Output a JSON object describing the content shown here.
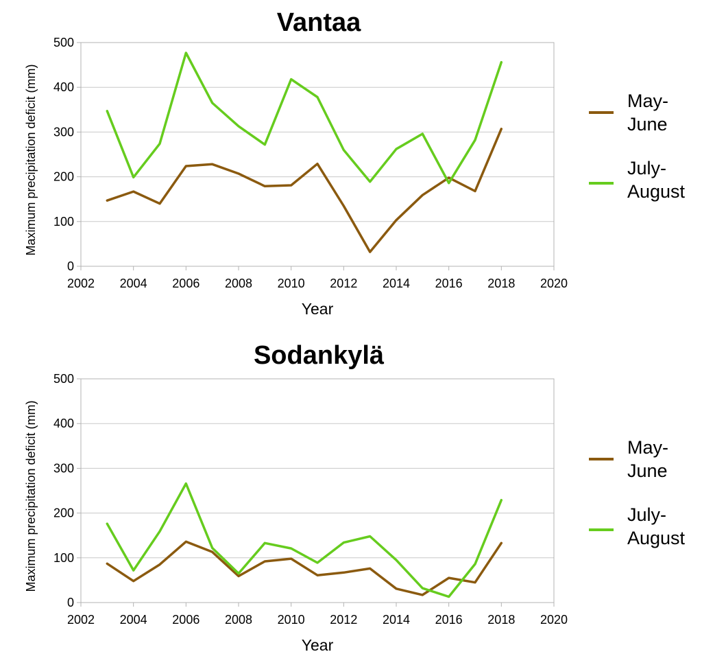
{
  "chart_data": [
    {
      "type": "line",
      "title": "Vantaa",
      "xlabel": "Year",
      "ylabel": "Maximum precipitation deficit (mm)",
      "xlim": [
        2002,
        2020
      ],
      "ylim": [
        0,
        500
      ],
      "xticks": [
        2002,
        2004,
        2006,
        2008,
        2010,
        2012,
        2014,
        2016,
        2018,
        2020
      ],
      "yticks": [
        0,
        100,
        200,
        300,
        400,
        500
      ],
      "grid": true,
      "legend_position": "right",
      "x": [
        2003,
        2004,
        2005,
        2006,
        2007,
        2008,
        2009,
        2010,
        2011,
        2012,
        2013,
        2014,
        2015,
        2016,
        2017,
        2018
      ],
      "series": [
        {
          "name": "May-June",
          "color": "#8B5A0F",
          "values": [
            147,
            167,
            140,
            224,
            228,
            207,
            179,
            181,
            229,
            135,
            32,
            103,
            159,
            198,
            168,
            307
          ]
        },
        {
          "name": "July-August",
          "color": "#66CC1E",
          "values": [
            347,
            199,
            274,
            477,
            365,
            313,
            272,
            418,
            378,
            260,
            189,
            262,
            296,
            186,
            282,
            456
          ]
        }
      ]
    },
    {
      "type": "line",
      "title": "Sodankylä",
      "xlabel": "Year",
      "ylabel": "Maximum precipitation deficit (mm)",
      "xlim": [
        2002,
        2020
      ],
      "ylim": [
        0,
        500
      ],
      "xticks": [
        2002,
        2004,
        2006,
        2008,
        2010,
        2012,
        2014,
        2016,
        2018,
        2020
      ],
      "yticks": [
        0,
        100,
        200,
        300,
        400,
        500
      ],
      "grid": true,
      "legend_position": "right",
      "x": [
        2003,
        2004,
        2005,
        2006,
        2007,
        2008,
        2009,
        2010,
        2011,
        2012,
        2013,
        2014,
        2015,
        2016,
        2017,
        2018
      ],
      "series": [
        {
          "name": "May-June",
          "color": "#8B5A0F",
          "values": [
            87,
            48,
            85,
            136,
            113,
            59,
            92,
            98,
            61,
            67,
            76,
            31,
            17,
            55,
            45,
            133
          ]
        },
        {
          "name": "July-August",
          "color": "#66CC1E",
          "values": [
            176,
            72,
            159,
            266,
            122,
            65,
            133,
            121,
            89,
            134,
            148,
            95,
            32,
            13,
            86,
            229
          ]
        }
      ]
    }
  ],
  "legend": {
    "items": [
      {
        "line1": "May-",
        "line2": "June",
        "color": "#8B5A0F"
      },
      {
        "line1": "July-",
        "line2": "August",
        "color": "#66CC1E"
      }
    ]
  }
}
